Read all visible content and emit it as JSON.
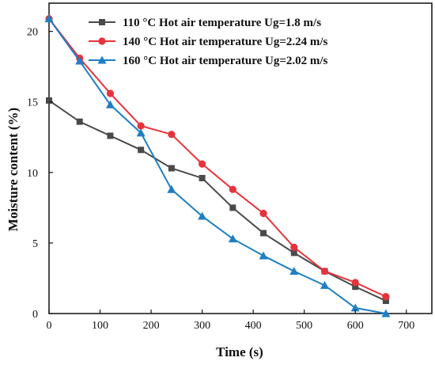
{
  "chart_data": {
    "type": "line",
    "xlabel": "Time (s)",
    "ylabel": "Moisture content (%)",
    "xlim": [
      0,
      750
    ],
    "ylim": [
      0,
      22
    ],
    "x_ticks": [
      0,
      100,
      200,
      300,
      400,
      500,
      600,
      700
    ],
    "y_ticks": [
      0,
      5,
      10,
      15,
      20
    ],
    "grid": false,
    "legend_position": "top-right",
    "series": [
      {
        "name": "110 °C  Hot air temperature Ug=1.8 m/s",
        "color": "#4a4a4a",
        "marker": "square",
        "x": [
          0,
          60,
          120,
          180,
          240,
          300,
          360,
          420,
          480,
          540,
          600,
          660
        ],
        "y": [
          15.1,
          13.6,
          12.6,
          11.6,
          10.3,
          9.6,
          7.5,
          5.7,
          4.3,
          3.0,
          1.9,
          0.9
        ]
      },
      {
        "name": "140 °C  Hot air temperature Ug=2.24 m/s",
        "color": "#e8323b",
        "marker": "circle",
        "x": [
          0,
          60,
          120,
          180,
          240,
          300,
          360,
          420,
          480,
          540,
          600,
          660
        ],
        "y": [
          20.9,
          18.1,
          15.6,
          13.3,
          12.7,
          10.6,
          8.8,
          7.1,
          4.7,
          3.0,
          2.2,
          1.2
        ]
      },
      {
        "name": "160 °C  Hot air temperature Ug=2.02 m/s",
        "color": "#1f7ec4",
        "marker": "triangle",
        "x": [
          0,
          60,
          120,
          180,
          240,
          300,
          360,
          420,
          480,
          540,
          600,
          660
        ],
        "y": [
          20.9,
          17.9,
          14.8,
          12.8,
          8.8,
          6.9,
          5.3,
          4.1,
          3.0,
          2.0,
          0.4,
          0.0
        ]
      }
    ]
  }
}
